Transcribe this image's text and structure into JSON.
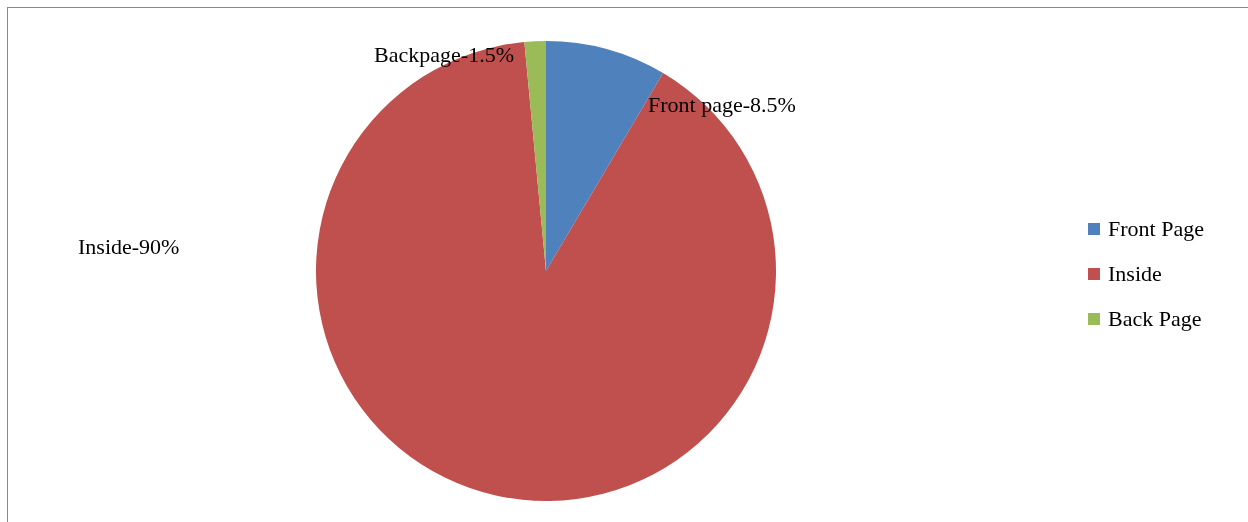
{
  "chart_data": {
    "type": "pie",
    "categories": [
      "Front Page",
      "Inside",
      "Back Page"
    ],
    "values": [
      8.5,
      90,
      1.5
    ],
    "colors": [
      "#4f81bd",
      "#c0504d",
      "#9bbb59"
    ],
    "value_labels": [
      "Front page-8.5%",
      "Inside-90%",
      "Backpage-1.5%"
    ],
    "legend": "right"
  }
}
